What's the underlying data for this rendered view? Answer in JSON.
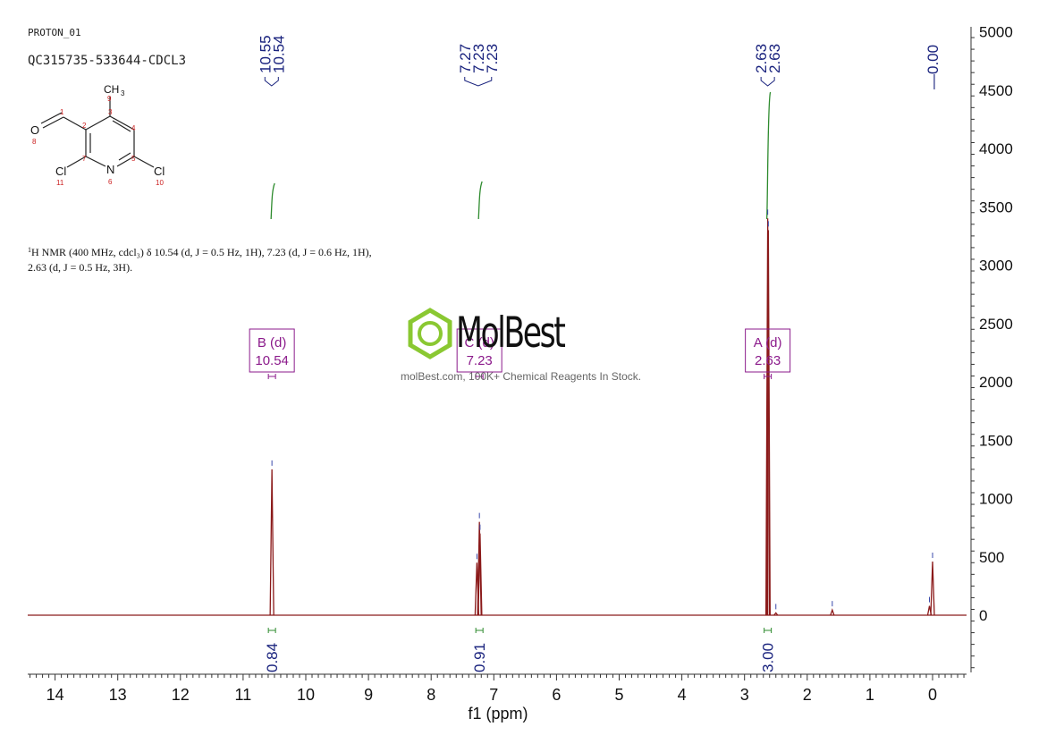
{
  "header": {
    "experiment": "PROTON_01",
    "sample": "QC315735-533644-CDCL3"
  },
  "nmr_description": {
    "nucleus_prefix": "1",
    "text": "H NMR (400 MHz, cdcl₃) δ 10.54 (d, J = 0.5 Hz, 1H), 7.23 (d, J = 0.6 Hz, 1H), 2.63 (d, J = 0.5 Hz, 3H)."
  },
  "structure": {
    "methyl": "CH",
    "methyl_sub": "3",
    "oxygen": "O",
    "nitrogen": "N",
    "chlorine_left": "Cl",
    "chlorine_right": "Cl",
    "atom_numbers": {
      "c1": "1",
      "c2": "2",
      "c3": "3",
      "c4": "4",
      "c5": "5",
      "n6": "6",
      "c7": "7",
      "o8": "8",
      "c9": "9",
      "cl10": "10",
      "cl11": "11"
    }
  },
  "watermark": {
    "brand": "MolBest",
    "tagline": "molBest.com, 100K+ Chemical Reagents In Stock."
  },
  "chart_data": {
    "type": "line",
    "xlabel": "f1 (ppm)",
    "ylabel": "",
    "xlim": [
      14.5,
      -0.55
    ],
    "ylim": [
      -500,
      5000
    ],
    "x_ticks": [
      14,
      13,
      12,
      11,
      10,
      9,
      8,
      7,
      6,
      5,
      4,
      3,
      2,
      1,
      0
    ],
    "y_ticks": [
      5000,
      4500,
      4000,
      3500,
      3000,
      2500,
      2000,
      1500,
      1000,
      500,
      0
    ],
    "peaks": [
      {
        "ppm": 10.54,
        "height": 1250
      },
      {
        "ppm": 7.27,
        "height": 450
      },
      {
        "ppm": 7.23,
        "height": 800
      },
      {
        "ppm": 7.22,
        "height": 700
      },
      {
        "ppm": 2.63,
        "height": 3400
      },
      {
        "ppm": 2.62,
        "height": 3300
      },
      {
        "ppm": 2.5,
        "height": 20
      },
      {
        "ppm": 1.6,
        "height": 45
      },
      {
        "ppm": 0.05,
        "height": 80
      },
      {
        "ppm": 0.0,
        "height": 460
      }
    ],
    "peak_labels": [
      {
        "labels": [
          "10.55",
          "10.54"
        ],
        "ppm": 10.545
      },
      {
        "labels": [
          "7.27",
          "7.23",
          "7.23"
        ],
        "ppm": 7.25
      },
      {
        "labels": [
          "2.63",
          "2.63"
        ],
        "ppm": 2.63
      },
      {
        "labels": [
          "0.00"
        ],
        "ppm": 0.0
      }
    ],
    "integrals": [
      {
        "ppm": 10.54,
        "value": "0.84"
      },
      {
        "ppm": 7.23,
        "value": "0.91"
      },
      {
        "ppm": 2.63,
        "value": "3.00"
      }
    ],
    "multiplets": [
      {
        "letter": "B (d)",
        "shift": "10.54",
        "ppm": 10.54
      },
      {
        "letter": "C (d)",
        "shift": "7.23",
        "ppm": 7.23
      },
      {
        "letter": "A (d)",
        "shift": "2.63",
        "ppm": 2.63
      }
    ],
    "colors": {
      "spectrum": "#8b1a1a",
      "integral_curve": "#2e8b2e",
      "peak_label": "#1a237e",
      "multiplet_box": "#8b1a8b",
      "axis": "#333333"
    }
  }
}
